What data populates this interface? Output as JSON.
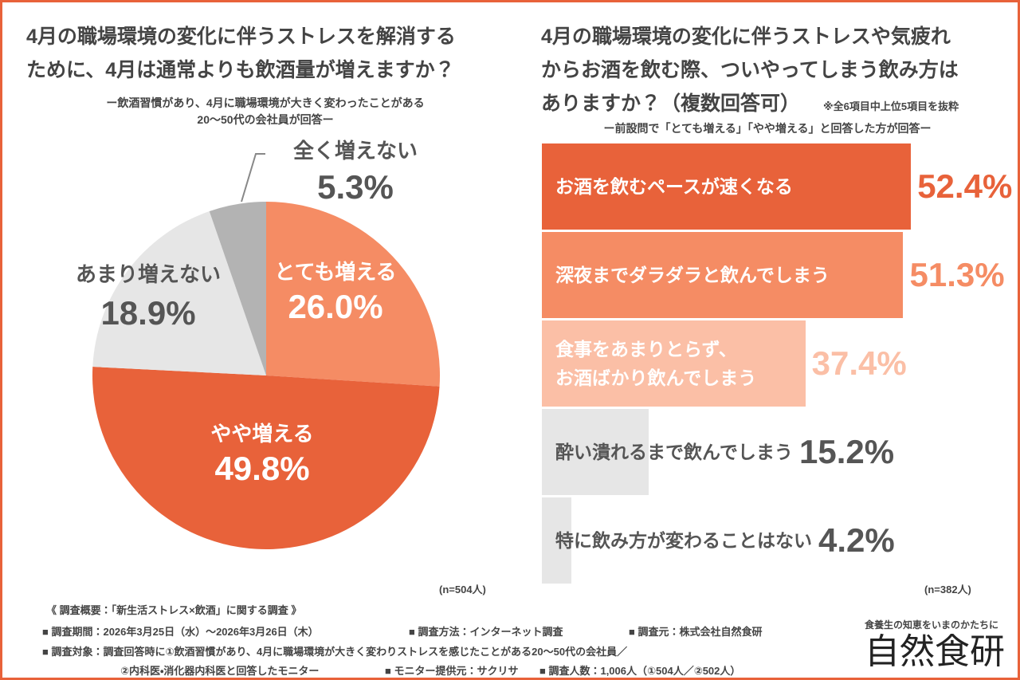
{
  "chart_data": [
    {
      "type": "pie",
      "title": "4月の職場環境の変化に伴うストレスを解消する\nために、4月は通常よりも飲酒量が増えますか？",
      "subtitle": "ー飲酒習慣があり、4月に職場環境が大きく変わったことがある\n20〜50代の会社員が回答ー",
      "note": "(n=504人)",
      "categories": [
        "とても増える",
        "やや増える",
        "あまり増えない",
        "全く増えない"
      ],
      "values": [
        26.0,
        49.8,
        18.9,
        5.3
      ],
      "value_labels": [
        "26.0%",
        "49.8%",
        "18.9%",
        "5.3%"
      ],
      "colors": [
        "#f58c64",
        "#e8623a",
        "#e6e6e6",
        "#b3b3b3"
      ],
      "label_colors": [
        "#ffffff",
        "#ffffff",
        "#555555",
        "#555555"
      ]
    },
    {
      "type": "bar",
      "title": "4月の職場環境の変化に伴うストレスや気疲れ\nからお酒を飲む際、ついやってしまう飲み方は\nありますか？（複数回答可）",
      "annotation": "※全6項目中上位5項目を抜粋",
      "subtitle": "ー前設問で「とても増える」「やや増える」と回答した方が回答ー",
      "note": "(n=382人)",
      "categories": [
        "お酒を飲むペースが速くなる",
        "深夜までダラダラと飲んでしまう",
        "食事をあまりとらず、\nお酒ばかり飲んでしまう",
        "酔い潰れるまで飲んでしまう",
        "特に飲み方が変わることはない"
      ],
      "values": [
        52.4,
        51.3,
        37.4,
        15.2,
        4.2
      ],
      "value_labels": [
        "52.4%",
        "51.3%",
        "37.4%",
        "15.2%",
        "4.2%"
      ],
      "colors": [
        "#e8623a",
        "#f58c64",
        "#fbbfa6",
        "#e6e6e6",
        "#e6e6e6"
      ],
      "text_colors": [
        "#ffffff",
        "#ffffff",
        "#ffffff",
        "#555555",
        "#555555"
      ],
      "label_colors": [
        "#e8623a",
        "#f58c64",
        "#fbbfa6",
        "#555555",
        "#555555"
      ]
    }
  ],
  "footer": {
    "heading": "《 調査概要：「新生活ストレス×飲酒」に関する調査 》",
    "period": "■ 調査期間：2026年3月25日（水）〜2026年3月26日（木）",
    "method": "■ 調査方法：インターネット調査",
    "source": "■ 調査元：株式会社自然食研",
    "target": "■ 調査対象：調査回答時に①飲酒習慣があり、4月に職場環境が大きく変わりストレスを感じたことがある20〜50代の会社員／",
    "target2": "②内科医・消化器内科医と回答したモニター",
    "provider": "■ モニター提供元：サクリサ",
    "count": "■ 調査人数：1,006人（①504人／②502人）"
  },
  "logo": {
    "tagline": "食養生の知恵をいまのかたちに",
    "name": "自然食研"
  }
}
